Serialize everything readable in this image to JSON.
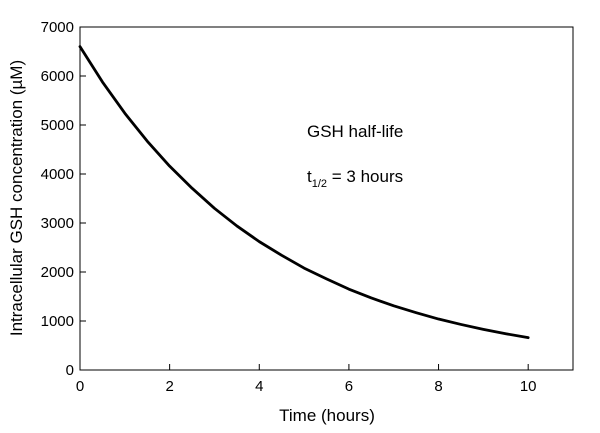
{
  "chart_data": {
    "type": "line",
    "xlabel": "Time (hours)",
    "ylabel_main": "Intracellular GSH concentration (",
    "ylabel_unit": "µM",
    "ylabel_close": ")",
    "xlim": [
      0,
      11
    ],
    "ylim": [
      0,
      7000
    ],
    "x_ticks": [
      0,
      2,
      4,
      6,
      8,
      10
    ],
    "y_ticks": [
      0,
      1000,
      2000,
      3000,
      4000,
      5000,
      6000,
      7000
    ],
    "grid": false,
    "line_color": "#000000",
    "series": [
      {
        "x": [
          0,
          0.5,
          1,
          1.5,
          2,
          2.5,
          3,
          3.5,
          4,
          4.5,
          5,
          5.5,
          6,
          6.5,
          7,
          7.5,
          8,
          8.5,
          9,
          9.5,
          10
        ],
        "y": [
          6600,
          5880,
          5240,
          4670,
          4160,
          3710,
          3300,
          2940,
          2620,
          2340,
          2080,
          1860,
          1650,
          1470,
          1310,
          1170,
          1040,
          930,
          830,
          740,
          660
        ]
      }
    ],
    "annotations": {
      "line1": "GSH half-life",
      "line2_t": "t",
      "line2_sub": "1/2",
      "line2_rest": " = 3 hours"
    }
  }
}
